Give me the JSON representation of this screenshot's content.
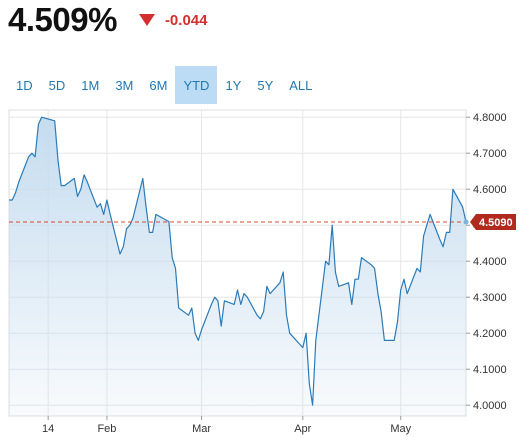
{
  "quote": {
    "price": "4.509%",
    "change": "-0.044",
    "direction_icon": "triangle-down-icon",
    "change_color": "#d32f2f"
  },
  "range_tabs": [
    {
      "label": "1D",
      "active": false
    },
    {
      "label": "5D",
      "active": false
    },
    {
      "label": "1M",
      "active": false
    },
    {
      "label": "3M",
      "active": false
    },
    {
      "label": "6M",
      "active": false
    },
    {
      "label": "YTD",
      "active": true
    },
    {
      "label": "1Y",
      "active": false
    },
    {
      "label": "5Y",
      "active": false
    },
    {
      "label": "ALL",
      "active": false
    }
  ],
  "chart_data": {
    "type": "area",
    "title": "",
    "xlabel": "",
    "ylabel": "",
    "ylim": [
      3.97,
      4.82
    ],
    "xlim": [
      "2024-01-02",
      "2024-05-21"
    ],
    "y_ticks": [
      "4.8000",
      "4.7000",
      "4.6000",
      "4.5000",
      "4.4000",
      "4.3000",
      "4.2000",
      "4.1000",
      "4.0000"
    ],
    "x_ticks": [
      {
        "label": "14",
        "date": "2024-01-14"
      },
      {
        "label": "Feb",
        "date": "2024-02-01"
      },
      {
        "label": "Mar",
        "date": "2024-03-01"
      },
      {
        "label": "Apr",
        "date": "2024-04-01"
      },
      {
        "label": "May",
        "date": "2024-05-01"
      }
    ],
    "grid": true,
    "line_color": "#2b7bb9",
    "fill_color": "#c5dcef",
    "reference_line": {
      "value": 4.509,
      "label": "4.5090",
      "color": "#d84a2b",
      "style": "dashed"
    },
    "series": [
      {
        "x": [
          "2024-01-02",
          "2024-01-03",
          "2024-01-04",
          "2024-01-05",
          "2024-01-08",
          "2024-01-09",
          "2024-01-10",
          "2024-01-11",
          "2024-01-12",
          "2024-01-16",
          "2024-01-17",
          "2024-01-18",
          "2024-01-19",
          "2024-01-22",
          "2024-01-23",
          "2024-01-24",
          "2024-01-25",
          "2024-01-26",
          "2024-01-29",
          "2024-01-30",
          "2024-01-31",
          "2024-02-01",
          "2024-02-02",
          "2024-02-05",
          "2024-02-06",
          "2024-02-07",
          "2024-02-08",
          "2024-02-09",
          "2024-02-12",
          "2024-02-13",
          "2024-02-14",
          "2024-02-15",
          "2024-02-16",
          "2024-02-20",
          "2024-02-21",
          "2024-02-22",
          "2024-02-23",
          "2024-02-26",
          "2024-02-27",
          "2024-02-28",
          "2024-02-29",
          "2024-03-01",
          "2024-03-04",
          "2024-03-05",
          "2024-03-06",
          "2024-03-07",
          "2024-03-08",
          "2024-03-11",
          "2024-03-12",
          "2024-03-13",
          "2024-03-14",
          "2024-03-15",
          "2024-03-18",
          "2024-03-19",
          "2024-03-20",
          "2024-03-21",
          "2024-03-22",
          "2024-03-25",
          "2024-03-26",
          "2024-03-27",
          "2024-03-28",
          "2024-04-01",
          "2024-04-02",
          "2024-04-03",
          "2024-04-04",
          "2024-04-05",
          "2024-04-08",
          "2024-04-09",
          "2024-04-10",
          "2024-04-11",
          "2024-04-12",
          "2024-04-15",
          "2024-04-16",
          "2024-04-17",
          "2024-04-18",
          "2024-04-19",
          "2024-04-22",
          "2024-04-23",
          "2024-04-24",
          "2024-04-25",
          "2024-04-26",
          "2024-04-29",
          "2024-04-30",
          "2024-05-01",
          "2024-05-02",
          "2024-05-03",
          "2024-05-06",
          "2024-05-07",
          "2024-05-08",
          "2024-05-09",
          "2024-05-10",
          "2024-05-13",
          "2024-05-14",
          "2024-05-15",
          "2024-05-16",
          "2024-05-17",
          "2024-05-20",
          "2024-05-21"
        ],
        "y": [
          4.57,
          4.57,
          4.59,
          4.62,
          4.69,
          4.7,
          4.69,
          4.78,
          4.8,
          4.79,
          4.68,
          4.61,
          4.61,
          4.63,
          4.58,
          4.6,
          4.64,
          4.62,
          4.55,
          4.56,
          4.53,
          4.57,
          4.53,
          4.42,
          4.44,
          4.49,
          4.5,
          4.52,
          4.63,
          4.55,
          4.48,
          4.48,
          4.53,
          4.51,
          4.41,
          4.38,
          4.27,
          4.25,
          4.27,
          4.2,
          4.18,
          4.21,
          4.28,
          4.3,
          4.29,
          4.22,
          4.29,
          4.28,
          4.32,
          4.28,
          4.31,
          4.3,
          4.25,
          4.24,
          4.26,
          4.33,
          4.31,
          4.34,
          4.37,
          4.25,
          4.2,
          4.16,
          4.2,
          4.06,
          4.0,
          4.18,
          4.4,
          4.39,
          4.5,
          4.37,
          4.33,
          4.34,
          4.28,
          4.35,
          4.35,
          4.41,
          4.39,
          4.38,
          4.31,
          4.26,
          4.18,
          4.18,
          4.23,
          4.32,
          4.35,
          4.31,
          4.38,
          4.37,
          4.47,
          4.5,
          4.53,
          4.46,
          4.44,
          4.48,
          4.48,
          4.6,
          4.55,
          4.509
        ]
      }
    ]
  }
}
